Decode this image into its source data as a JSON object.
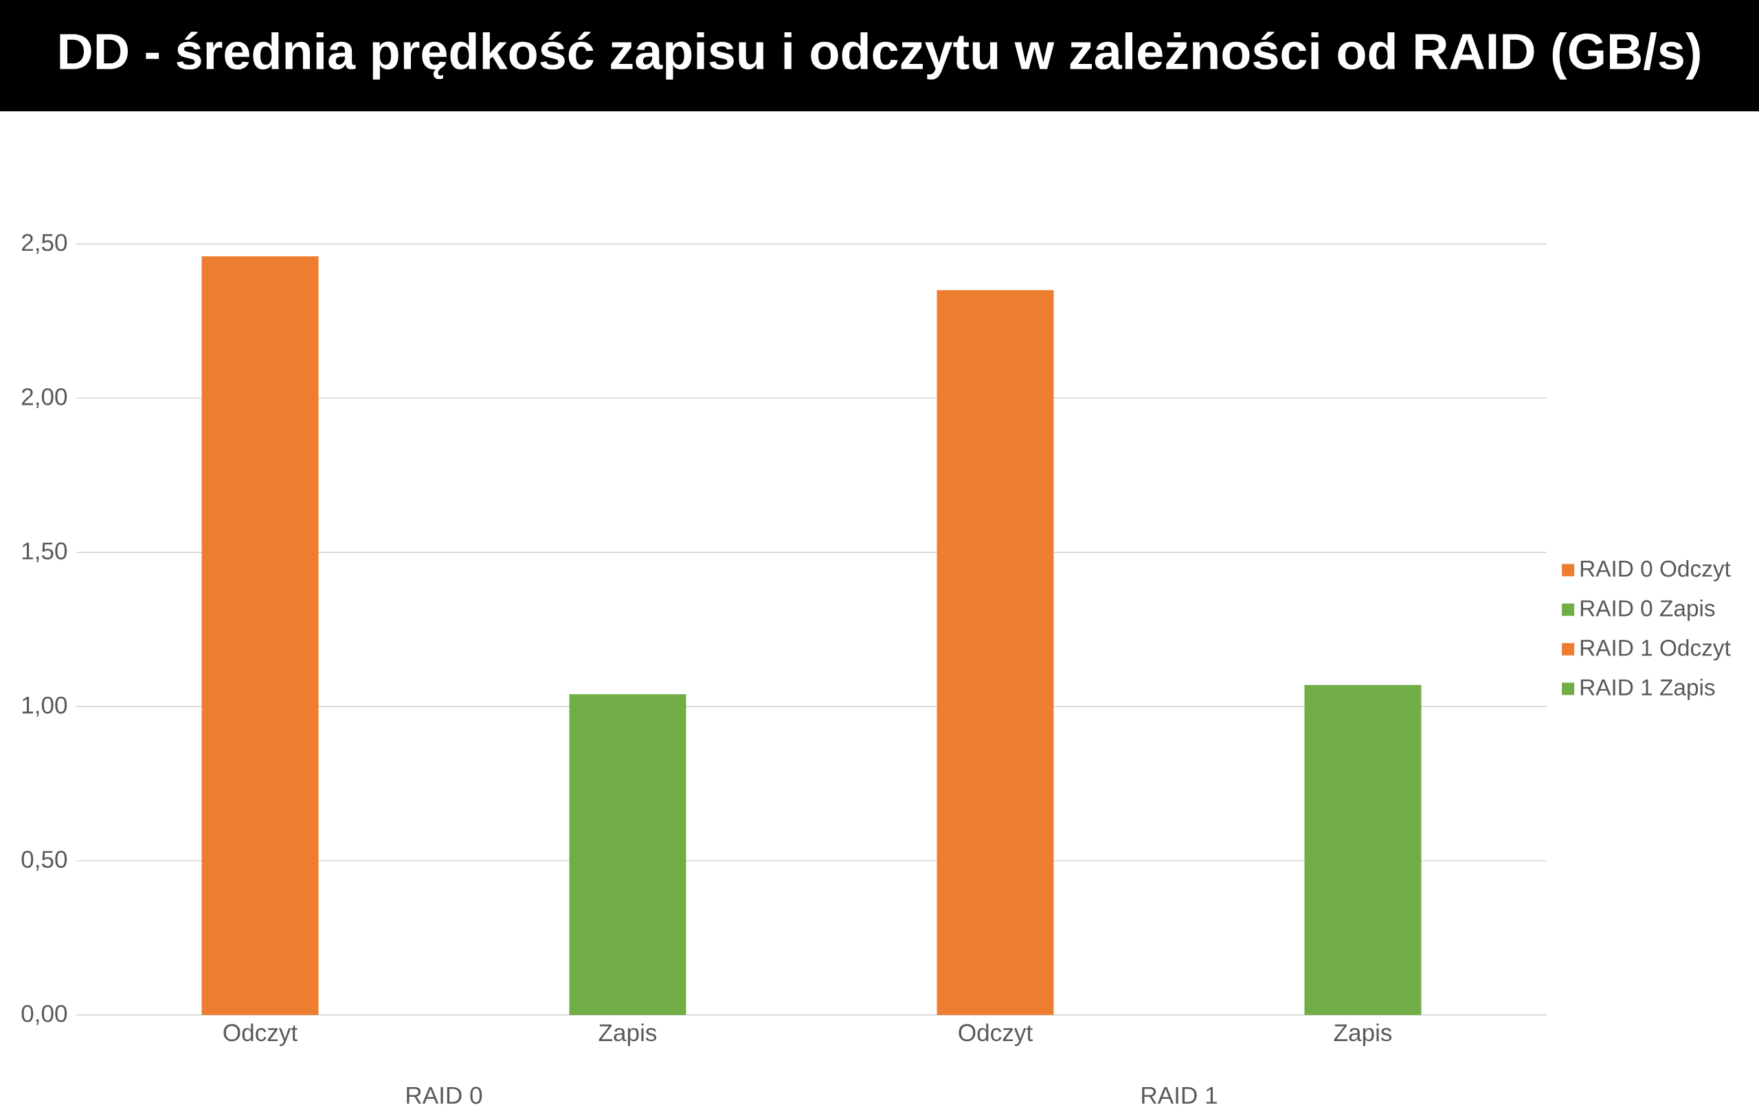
{
  "chart_data": {
    "type": "bar",
    "title": "DD - średnia prędkość zapisu i odczytu w zależności od RAID (GB/s)",
    "categories": [
      "Odczyt",
      "Zapis",
      "Odczyt",
      "Zapis"
    ],
    "series": [
      {
        "name": "RAID 0 Odczyt",
        "color": "#ed7d31",
        "values": [
          2.46,
          null,
          null,
          null
        ]
      },
      {
        "name": "RAID 0 Zapis",
        "color": "#70ad47",
        "values": [
          null,
          1.04,
          null,
          null
        ]
      },
      {
        "name": "RAID 1 Odczyt",
        "color": "#ed7d31",
        "values": [
          null,
          null,
          2.35,
          null
        ]
      },
      {
        "name": "RAID 1 Zapis",
        "color": "#70ad47",
        "values": [
          null,
          null,
          null,
          1.07
        ]
      }
    ],
    "ylim": [
      0,
      2.5
    ],
    "yticks": [
      {
        "value": 0,
        "label": "0,00"
      },
      {
        "value": 0.5,
        "label": "0,50"
      },
      {
        "value": 1,
        "label": "1,00"
      },
      {
        "value": 1.5,
        "label": "1,50"
      },
      {
        "value": 2,
        "label": "2,00"
      },
      {
        "value": 2.5,
        "label": "2,50"
      }
    ],
    "grid": "y",
    "legend": "right",
    "annotations": [
      "RAID 0",
      "RAID 1"
    ]
  }
}
